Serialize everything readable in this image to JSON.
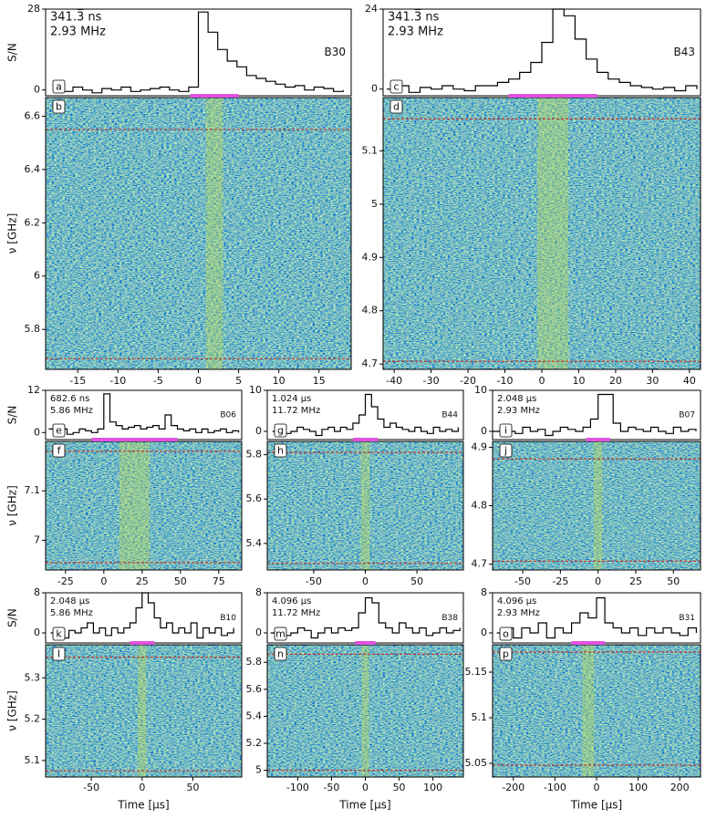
{
  "chart_data": [
    {
      "type": "line",
      "panels": [
        "a",
        "b"
      ],
      "annotations": [
        "341.3̅ ns",
        "2.93 MHz"
      ],
      "burst": "B30",
      "ylabel": "S/N",
      "y2label": "ν [GHz]",
      "x": [
        -18,
        -16.8,
        -15.6,
        -14.4,
        -13.2,
        -12,
        -10.8,
        -9.6,
        -8.4,
        -7.2,
        -6,
        -4.8,
        -3.6,
        -2.4,
        -1.2,
        0,
        1.2,
        2.4,
        3.6,
        4.8,
        6,
        7.2,
        8.4,
        9.6,
        10.8,
        12,
        13.2,
        14.4,
        15.6,
        16.8,
        18
      ],
      "values": [
        0.5,
        -0.5,
        1,
        0,
        -1,
        0.5,
        0,
        1,
        -0.5,
        0,
        0.5,
        1,
        0,
        -0.5,
        1,
        27,
        20,
        14,
        10,
        8,
        5,
        4,
        3,
        2,
        1,
        1.5,
        0,
        1,
        0.5,
        -0.5,
        0
      ],
      "color": "#000000",
      "xlim": [
        -19,
        19
      ],
      "xticks": [
        -15,
        -10,
        -5,
        0,
        5,
        10,
        15
      ],
      "ylim": [
        -2,
        28
      ],
      "yticks": [
        0,
        28
      ],
      "window": [
        -1,
        5
      ],
      "window_color": "#e052e0",
      "y2lim": [
        5.65,
        6.67
      ],
      "y2ticks": [
        5.8,
        6.0,
        6.2,
        6.4,
        6.6
      ],
      "band": [
        5.69,
        6.55
      ],
      "band_color": "#c0392b"
    },
    {
      "type": "line",
      "panels": [
        "c",
        "d"
      ],
      "annotations": [
        "341.3̅ ns",
        "2.93 MHz"
      ],
      "burst": "B43",
      "x": [
        -42,
        -39,
        -36,
        -33,
        -30,
        -27,
        -24,
        -21,
        -18,
        -15,
        -12,
        -9,
        -6,
        -3,
        0,
        3,
        6,
        9,
        12,
        15,
        18,
        21,
        24,
        27,
        30,
        33,
        36,
        39,
        42
      ],
      "values": [
        0,
        1,
        -1,
        0.5,
        0,
        1,
        0,
        -0.5,
        1,
        1,
        2,
        3,
        5,
        8,
        14,
        24,
        22,
        15,
        9,
        5,
        3,
        2,
        1,
        0.5,
        0,
        0.5,
        -0.5,
        1,
        0
      ],
      "color": "#000000",
      "xlim": [
        -43,
        43
      ],
      "xticks": [
        -40,
        -30,
        -20,
        -10,
        0,
        10,
        20,
        30,
        40
      ],
      "ylim": [
        -2,
        24
      ],
      "yticks": [
        0,
        24
      ],
      "window": [
        -9,
        15
      ],
      "window_color": "#e052e0",
      "y2lim": [
        4.69,
        5.2
      ],
      "y2ticks": [
        4.7,
        4.8,
        4.9,
        5.0,
        5.1
      ],
      "band": [
        4.705,
        5.16
      ],
      "band_color": "#c0392b"
    },
    {
      "type": "line",
      "panels": [
        "e",
        "f"
      ],
      "annotations": [
        "682.6 ns",
        "5.86 MHz"
      ],
      "burst": "B06",
      "ylabel": "S/N",
      "y2label": "ν [GHz]",
      "x": [
        -36,
        -32,
        -28,
        -24,
        -20,
        -16,
        -12,
        -8,
        -4,
        0,
        4,
        8,
        12,
        16,
        20,
        24,
        28,
        32,
        36,
        40,
        44,
        48,
        52,
        56,
        60,
        64,
        68,
        72,
        76,
        80,
        84,
        88
      ],
      "values": [
        1,
        0,
        1,
        -0.5,
        0,
        1,
        0.5,
        0,
        1,
        11,
        3,
        2,
        1,
        1.5,
        2,
        1,
        1.5,
        2,
        1,
        5,
        2,
        1,
        0.5,
        1,
        0,
        1,
        0,
        0.5,
        1,
        0,
        0.5,
        0
      ],
      "color": "#000000",
      "xlim": [
        -38,
        90
      ],
      "xticks": [
        -25,
        0,
        25,
        50,
        75
      ],
      "ylim": [
        -2,
        12
      ],
      "yticks": [
        0,
        12
      ],
      "window": [
        -8,
        48
      ],
      "window_color": "#e052e0",
      "y2lim": [
        6.94,
        7.2
      ],
      "y2ticks": [
        7.0,
        7.1
      ],
      "band": [
        6.955,
        7.18
      ],
      "band_color": "#c0392b"
    },
    {
      "type": "line",
      "panels": [
        "g",
        "h"
      ],
      "annotations": [
        "1.024 μs",
        "11.72 MHz"
      ],
      "burst": "B44",
      "x": [
        -90,
        -84,
        -78,
        -72,
        -66,
        -60,
        -54,
        -48,
        -42,
        -36,
        -30,
        -24,
        -18,
        -12,
        -6,
        0,
        6,
        12,
        18,
        24,
        30,
        36,
        42,
        48,
        54,
        60,
        66,
        72,
        78,
        84,
        90
      ],
      "values": [
        0,
        1,
        -0.5,
        0,
        1,
        0.5,
        0,
        -1,
        0.5,
        1,
        0,
        1,
        0.5,
        2,
        4,
        9,
        6,
        3,
        1,
        2,
        1,
        0.5,
        0,
        1,
        0,
        -0.5,
        1,
        0,
        0.5,
        0,
        1
      ],
      "color": "#000000",
      "xlim": [
        -95,
        95
      ],
      "xticks": [
        -50,
        0,
        50
      ],
      "ylim": [
        -2,
        10
      ],
      "yticks": [
        0,
        10
      ],
      "window": [
        -12,
        12
      ],
      "window_color": "#e052e0",
      "y2lim": [
        5.28,
        5.86
      ],
      "y2ticks": [
        5.4,
        5.6,
        5.8
      ],
      "band": [
        5.31,
        5.81
      ],
      "band_color": "#c0392b"
    },
    {
      "type": "line",
      "panels": [
        "i",
        "j"
      ],
      "annotations": [
        "2.048 μs",
        "2.93 MHz"
      ],
      "burst": "B07",
      "x": [
        -70,
        -65,
        -60,
        -55,
        -50,
        -45,
        -40,
        -35,
        -30,
        -25,
        -20,
        -15,
        -10,
        -5,
        0,
        5,
        10,
        15,
        20,
        25,
        30,
        35,
        40,
        45,
        50,
        55,
        60,
        65
      ],
      "values": [
        0,
        1,
        0,
        -0.5,
        1,
        0,
        0.5,
        -1,
        0,
        1,
        0.5,
        0,
        1,
        3,
        9,
        9,
        2,
        0,
        1,
        0.5,
        0,
        1,
        0,
        -0.5,
        1,
        0,
        0.5,
        0
      ],
      "color": "#000000",
      "xlim": [
        -70,
        68
      ],
      "xticks": [
        -50,
        -25,
        0,
        25,
        50
      ],
      "ylim": [
        -2,
        10
      ],
      "yticks": [
        0,
        10
      ],
      "window": [
        -8,
        8
      ],
      "window_color": "#e052e0",
      "y2lim": [
        4.69,
        4.91
      ],
      "y2ticks": [
        4.7,
        4.8,
        4.9
      ],
      "band": [
        4.705,
        4.88
      ],
      "band_color": "#c0392b"
    },
    {
      "type": "line",
      "panels": [
        "k",
        "l"
      ],
      "annotations": [
        "2.048 μs",
        "5.86 MHz"
      ],
      "burst": "B10",
      "ylabel": "S/N",
      "y2label": "ν [GHz]",
      "xlabel": "Time [μs]",
      "x": [
        -90,
        -84,
        -78,
        -72,
        -66,
        -60,
        -54,
        -48,
        -42,
        -36,
        -30,
        -24,
        -18,
        -12,
        -6,
        0,
        6,
        12,
        18,
        24,
        30,
        36,
        42,
        48,
        54,
        60,
        66,
        72,
        78,
        84,
        90
      ],
      "values": [
        0,
        1,
        -1,
        0.5,
        0,
        1,
        2,
        0,
        1,
        -0.5,
        1,
        0,
        1,
        2,
        5,
        8,
        6,
        3,
        1,
        2,
        0,
        1,
        0,
        2,
        -1,
        1,
        0,
        1,
        -0.5,
        0,
        1
      ],
      "color": "#000000",
      "xlim": [
        -95,
        98
      ],
      "xticks": [
        -50,
        0,
        50
      ],
      "ylim": [
        -2,
        8
      ],
      "yticks": [
        0,
        8
      ],
      "window": [
        -12,
        12
      ],
      "window_color": "#e052e0",
      "y2lim": [
        5.06,
        5.38
      ],
      "y2ticks": [
        5.1,
        5.2,
        5.3
      ],
      "band": [
        5.075,
        5.35
      ],
      "band_color": "#c0392b"
    },
    {
      "type": "line",
      "panels": [
        "m",
        "n"
      ],
      "annotations": [
        "4.096 μs",
        "11.72 MHz"
      ],
      "burst": "B38",
      "xlabel": "Time [μs]",
      "x": [
        -140,
        -130,
        -120,
        -110,
        -100,
        -90,
        -80,
        -70,
        -60,
        -50,
        -40,
        -30,
        -20,
        -10,
        0,
        10,
        20,
        30,
        40,
        50,
        60,
        70,
        80,
        90,
        100,
        110,
        120,
        130,
        140
      ],
      "values": [
        0,
        1,
        -0.5,
        0,
        1,
        0.5,
        -1,
        0,
        1,
        0,
        1,
        0.5,
        1,
        4,
        7,
        6,
        2,
        1,
        0,
        2,
        1,
        0,
        1,
        -0.5,
        0,
        1,
        0,
        0.5,
        1
      ],
      "color": "#000000",
      "xlim": [
        -145,
        145
      ],
      "xticks": [
        -100,
        -50,
        0,
        50,
        100
      ],
      "ylim": [
        -2,
        8
      ],
      "yticks": [
        0,
        8
      ],
      "window": [
        -15,
        15
      ],
      "window_color": "#e052e0",
      "y2lim": [
        4.95,
        5.93
      ],
      "y2ticks": [
        5.0,
        5.2,
        5.4,
        5.6,
        5.8
      ],
      "band": [
        5.0,
        5.86
      ],
      "band_color": "#c0392b"
    },
    {
      "type": "line",
      "panels": [
        "o",
        "p"
      ],
      "annotations": [
        "4.096 μs",
        "2.93 MHz"
      ],
      "burst": "B31",
      "xlabel": "Time [μs]",
      "x": [
        -240,
        -220,
        -200,
        -180,
        -160,
        -140,
        -120,
        -100,
        -80,
        -60,
        -40,
        -20,
        0,
        20,
        40,
        60,
        80,
        100,
        120,
        140,
        160,
        180,
        200,
        220,
        240
      ],
      "values": [
        0,
        1,
        -1,
        1,
        0,
        2,
        -1,
        1,
        0,
        2,
        4,
        3,
        7,
        2,
        1,
        0,
        1,
        -0.5,
        1,
        0,
        1,
        0,
        -0.5,
        1,
        0
      ],
      "color": "#000000",
      "xlim": [
        -250,
        250
      ],
      "xticks": [
        -200,
        -100,
        0,
        100,
        200
      ],
      "ylim": [
        -2,
        8
      ],
      "yticks": [
        0,
        8
      ],
      "window": [
        -60,
        20
      ],
      "window_color": "#e052e0",
      "y2lim": [
        5.035,
        5.18
      ],
      "y2ticks": [
        5.05,
        5.1,
        5.15
      ],
      "band": [
        5.048,
        5.172
      ],
      "band_color": "#c0392b"
    }
  ]
}
